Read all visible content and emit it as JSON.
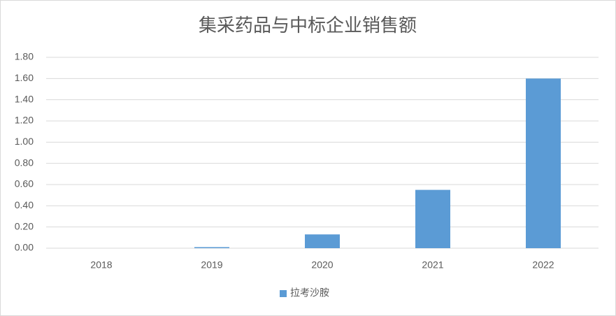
{
  "chart_data": {
    "type": "bar",
    "title": "集采药品与中标企业销售额",
    "categories": [
      "2018",
      "2019",
      "2020",
      "2021",
      "2022"
    ],
    "series": [
      {
        "name": "拉考沙胺",
        "color": "#5b9bd5",
        "values": [
          0,
          0.01,
          0.13,
          0.55,
          1.6
        ]
      }
    ],
    "ylim": [
      0,
      1.8
    ],
    "yticks": [
      {
        "value": 0,
        "label": "0.00"
      },
      {
        "value": 0.2,
        "label": "0.20"
      },
      {
        "value": 0.4,
        "label": "0.40"
      },
      {
        "value": 0.6,
        "label": "0.60"
      },
      {
        "value": 0.8,
        "label": "0.80"
      },
      {
        "value": 1.0,
        "label": "1.00"
      },
      {
        "value": 1.2,
        "label": "1.20"
      },
      {
        "value": 1.4,
        "label": "1.40"
      },
      {
        "value": 1.6,
        "label": "1.60"
      },
      {
        "value": 1.8,
        "label": "1.80"
      }
    ],
    "grid": true,
    "legend": "bottom"
  }
}
